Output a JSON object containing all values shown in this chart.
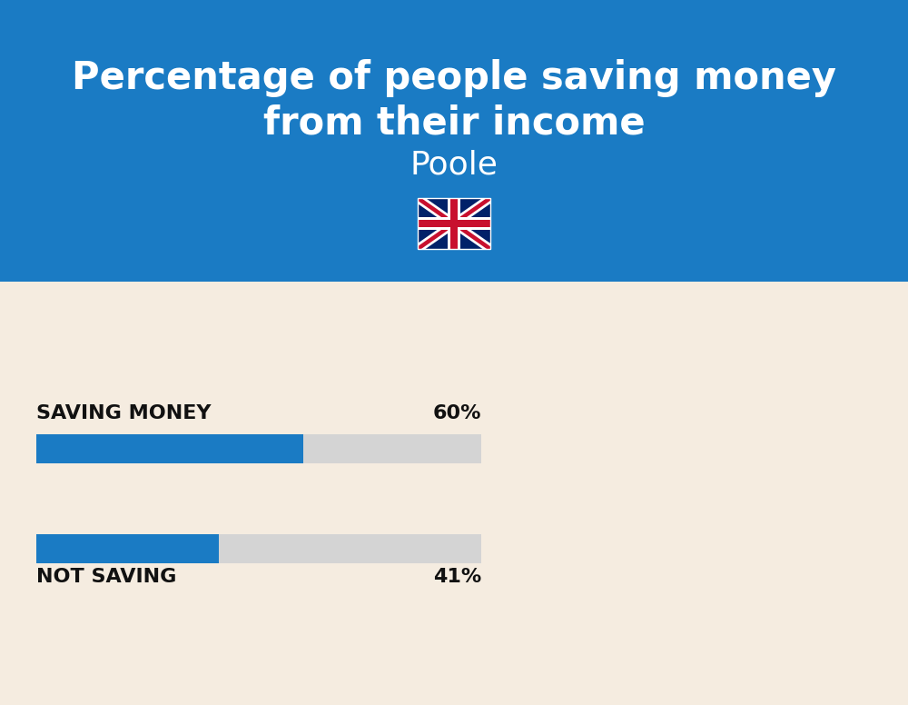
{
  "title_line1": "Percentage of people saving money",
  "title_line2": "from their income",
  "subtitle": "Poole",
  "bg_color": "#f5ece0",
  "header_bg_color": "#1a7bc4",
  "bar_color": "#1a7bc4",
  "bar_bg_color": "#d4d4d4",
  "categories": [
    "SAVING MONEY",
    "NOT SAVING"
  ],
  "values": [
    60,
    41
  ],
  "label_color": "#111111",
  "title_color": "#ffffff",
  "subtitle_color": "#ffffff",
  "figsize": [
    10.0,
    7.76
  ],
  "flag_blue": "#012169",
  "flag_red": "#C8102E",
  "flag_white": "#ffffff"
}
